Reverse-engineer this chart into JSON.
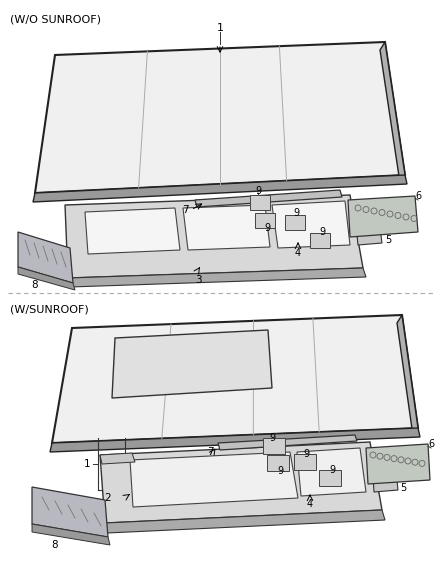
{
  "title_top": "(W/O SUNROOF)",
  "title_bottom": "(W/SUNROOF)",
  "bg": "#ffffff",
  "lc": "#333333",
  "tc": "#000000",
  "roof_face": "#e8e8e8",
  "roof_side": "#aaaaaa",
  "roof_edge": "#222222",
  "frame_face": "#d0d0d0",
  "frame_dark": "#888888",
  "bracket_face": "#b8b8b8",
  "pad_face": "#d8d8d8",
  "divider_color": "#aaaaaa"
}
